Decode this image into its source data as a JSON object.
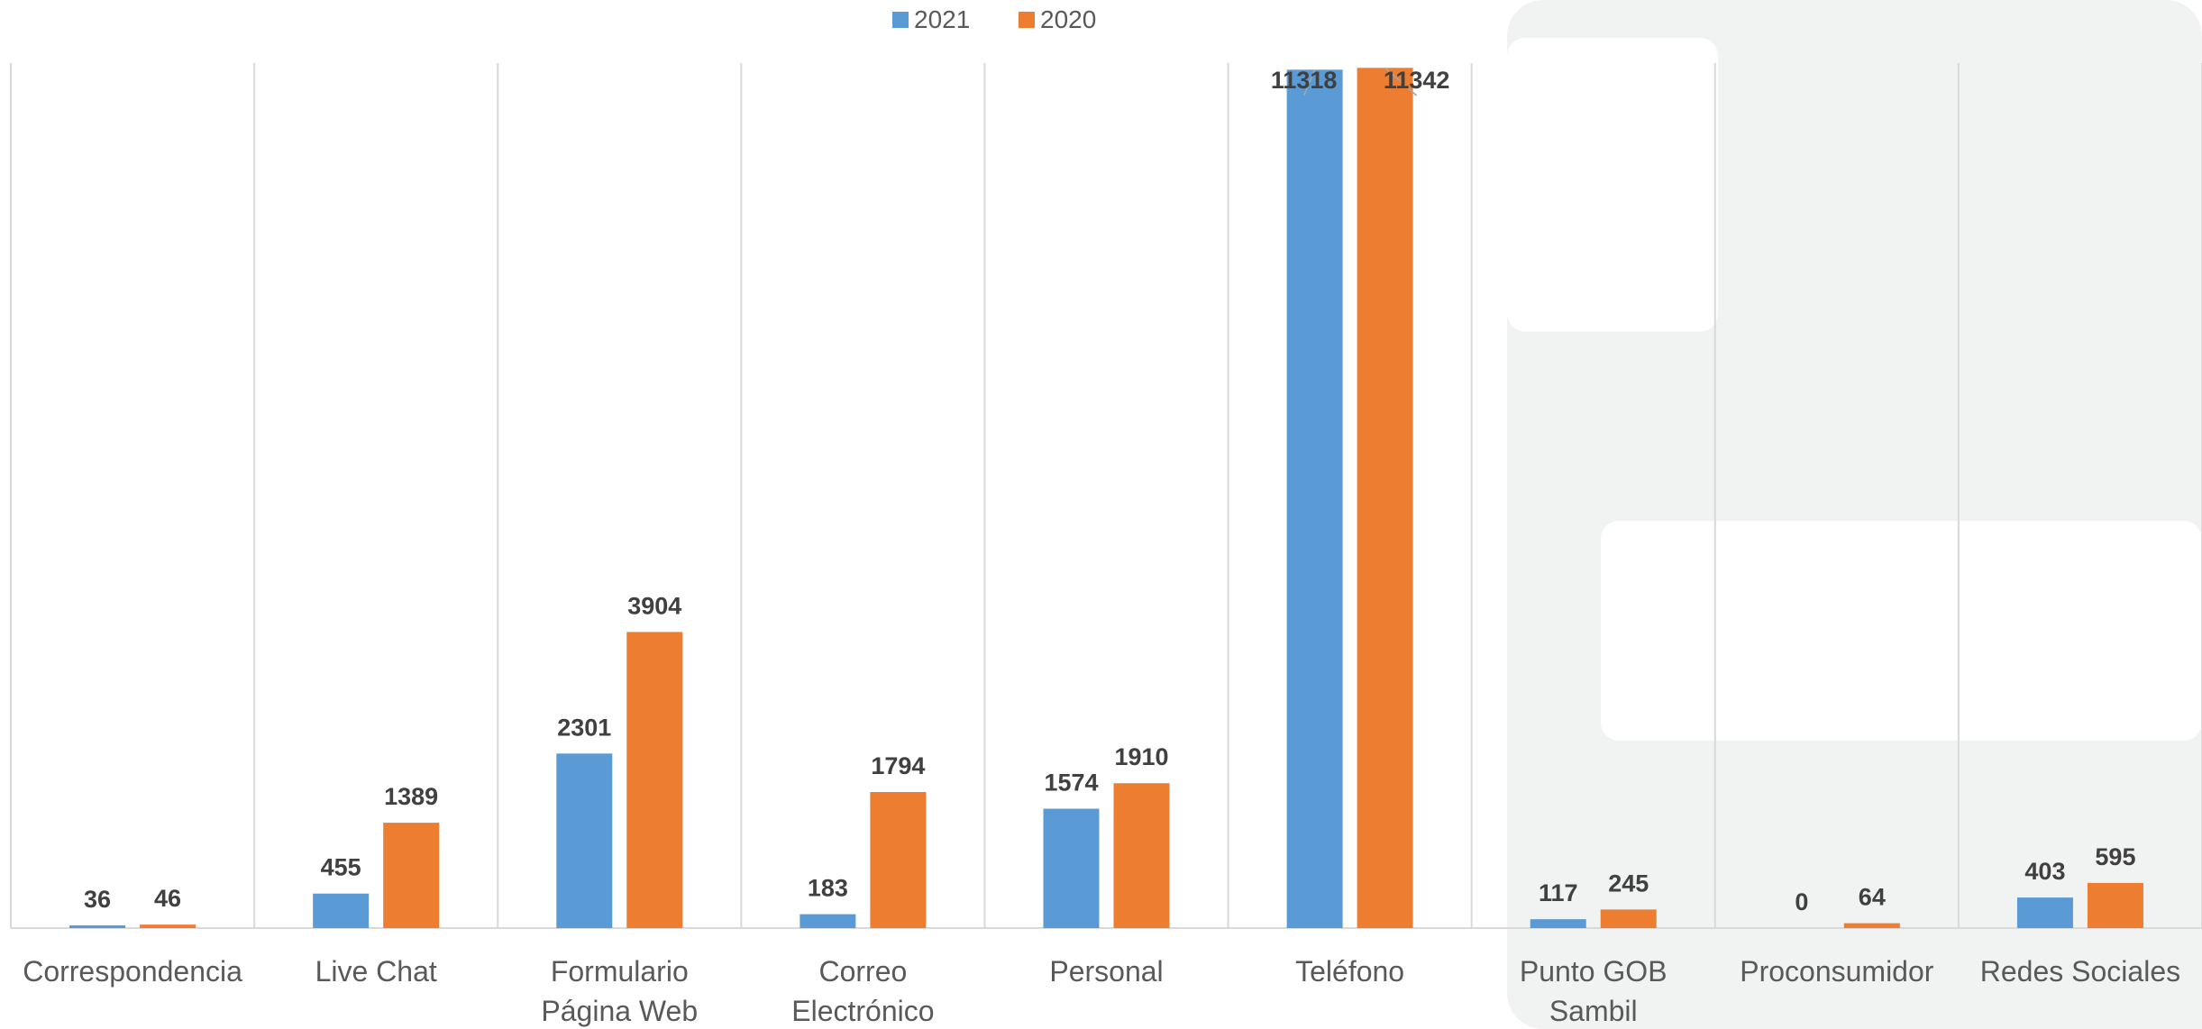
{
  "chart_data": {
    "type": "bar",
    "categories": [
      [
        "Correspondencia"
      ],
      [
        "Live Chat"
      ],
      [
        "Formulario",
        "Página Web"
      ],
      [
        "Correo",
        "Electrónico"
      ],
      [
        "Personal"
      ],
      [
        "Teléfono"
      ],
      [
        "Punto GOB",
        "Sambil"
      ],
      [
        "Proconsumidor"
      ],
      [
        "Redes Sociales"
      ]
    ],
    "series": [
      {
        "name": "2021",
        "color": "#5B9BD5",
        "values": [
          36,
          455,
          2301,
          183,
          1574,
          11318,
          117,
          0,
          403
        ]
      },
      {
        "name": "2020",
        "color": "#ED7D31",
        "values": [
          46,
          1389,
          3904,
          1794,
          1910,
          11342,
          245,
          64,
          595
        ]
      }
    ],
    "ylim": [
      0,
      11500
    ],
    "grid": "vertical category separators",
    "legend": "top-center",
    "data_labels": true
  }
}
